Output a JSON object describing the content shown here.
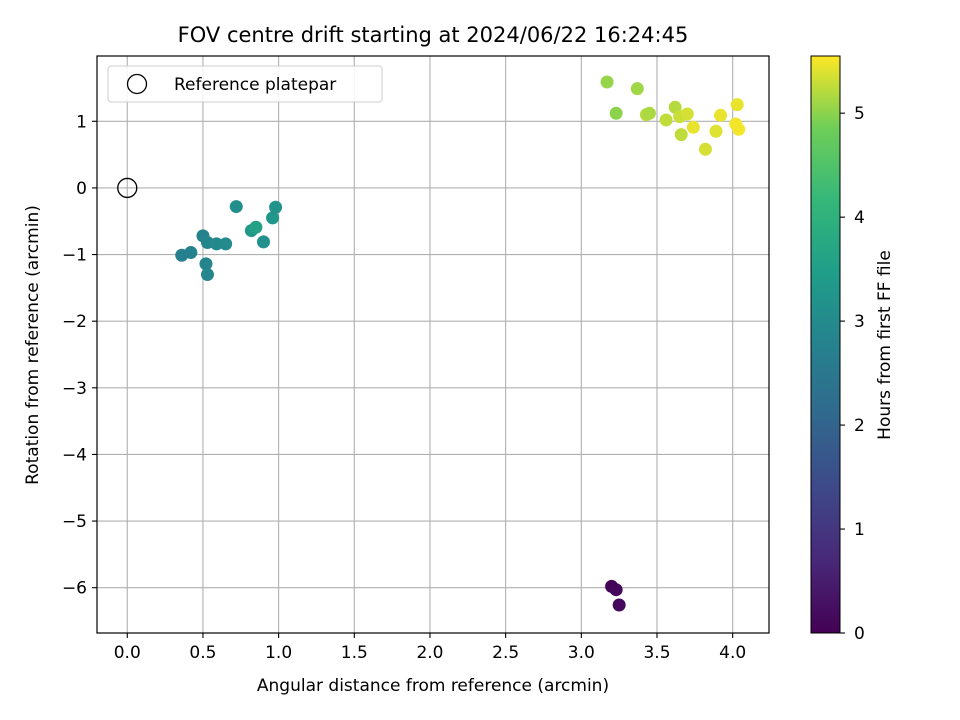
{
  "chart_data": {
    "type": "scatter",
    "title": "FOV centre drift starting at 2024/06/22 16:24:45",
    "xlabel": "Angular distance from reference (arcmin)",
    "ylabel": "Rotation from reference (arcmin)",
    "xlim": [
      -0.2,
      4.24
    ],
    "ylim": [
      -6.68,
      1.98
    ],
    "xticks": [
      "0.0",
      "0.5",
      "1.0",
      "1.5",
      "2.0",
      "2.5",
      "3.0",
      "3.5",
      "4.0"
    ],
    "xtick_values": [
      0,
      0.5,
      1,
      1.5,
      2,
      2.5,
      3,
      3.5,
      4
    ],
    "yticks": [
      "−6",
      "−5",
      "−4",
      "−3",
      "−2",
      "−1",
      "0",
      "1"
    ],
    "ytick_values": [
      -6,
      -5,
      -4,
      -3,
      -2,
      -1,
      0,
      1
    ],
    "grid": true,
    "legend": {
      "placement": "top-left",
      "entries": [
        "Reference platepar"
      ]
    },
    "reference_point": {
      "x": 0,
      "y": 0
    },
    "colorbar": {
      "label": "Hours from first FF file",
      "range": [
        0,
        5.55
      ],
      "colormap": "viridis",
      "ticks": [
        "0",
        "1",
        "2",
        "3",
        "4",
        "5"
      ],
      "tick_values": [
        0,
        1,
        2,
        3,
        4,
        5
      ]
    },
    "points": [
      {
        "x": 3.2,
        "y": -5.98,
        "t": 0.05
      },
      {
        "x": 3.23,
        "y": -6.03,
        "t": 0.1
      },
      {
        "x": 3.25,
        "y": -6.26,
        "t": 0.15
      },
      {
        "x": 0.36,
        "y": -1.01,
        "t": 2.7
      },
      {
        "x": 0.42,
        "y": -0.97,
        "t": 2.75
      },
      {
        "x": 0.5,
        "y": -0.72,
        "t": 2.8
      },
      {
        "x": 0.53,
        "y": -0.82,
        "t": 2.85
      },
      {
        "x": 0.52,
        "y": -1.14,
        "t": 2.85
      },
      {
        "x": 0.53,
        "y": -1.3,
        "t": 2.9
      },
      {
        "x": 0.59,
        "y": -0.84,
        "t": 2.95
      },
      {
        "x": 0.65,
        "y": -0.84,
        "t": 3.0
      },
      {
        "x": 0.72,
        "y": -0.28,
        "t": 3.1
      },
      {
        "x": 0.82,
        "y": -0.64,
        "t": 3.35
      },
      {
        "x": 0.85,
        "y": -0.59,
        "t": 3.55
      },
      {
        "x": 0.9,
        "y": -0.81,
        "t": 3.15
      },
      {
        "x": 0.96,
        "y": -0.45,
        "t": 3.3
      },
      {
        "x": 0.98,
        "y": -0.29,
        "t": 3.2
      },
      {
        "x": 3.17,
        "y": 1.59,
        "t": 5.05
      },
      {
        "x": 3.23,
        "y": 1.12,
        "t": 5.0
      },
      {
        "x": 3.37,
        "y": 1.49,
        "t": 5.1
      },
      {
        "x": 3.43,
        "y": 1.1,
        "t": 5.2
      },
      {
        "x": 3.45,
        "y": 1.12,
        "t": 5.15
      },
      {
        "x": 3.56,
        "y": 1.02,
        "t": 5.25
      },
      {
        "x": 3.62,
        "y": 1.21,
        "t": 5.2
      },
      {
        "x": 3.65,
        "y": 1.07,
        "t": 5.3
      },
      {
        "x": 3.66,
        "y": 0.8,
        "t": 5.25
      },
      {
        "x": 3.7,
        "y": 1.11,
        "t": 5.35
      },
      {
        "x": 3.74,
        "y": 0.91,
        "t": 5.45
      },
      {
        "x": 3.82,
        "y": 0.58,
        "t": 5.35
      },
      {
        "x": 3.89,
        "y": 0.85,
        "t": 5.4
      },
      {
        "x": 3.92,
        "y": 1.09,
        "t": 5.45
      },
      {
        "x": 4.02,
        "y": 0.96,
        "t": 5.5
      },
      {
        "x": 4.03,
        "y": 1.25,
        "t": 5.45
      },
      {
        "x": 4.04,
        "y": 0.88,
        "t": 5.5
      }
    ]
  }
}
